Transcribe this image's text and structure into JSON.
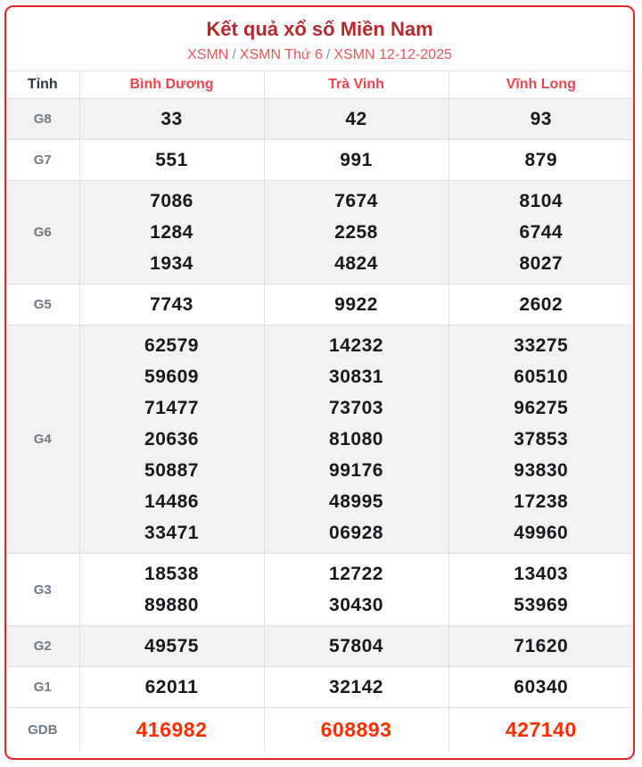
{
  "header": {
    "title": "Kết quả xổ số Miền Nam",
    "breadcrumb": [
      "XSMN",
      "XSMN Thứ 6",
      "XSMN 12-12-2025"
    ],
    "separator": "/"
  },
  "table": {
    "corner_label": "Tỉnh",
    "provinces": [
      "Bình Dương",
      "Trà Vinh",
      "Vĩnh Long"
    ],
    "rows": [
      {
        "prize": "G8",
        "shaded": true,
        "highlight": false,
        "values": [
          [
            "33"
          ],
          [
            "42"
          ],
          [
            "93"
          ]
        ]
      },
      {
        "prize": "G7",
        "shaded": false,
        "highlight": false,
        "values": [
          [
            "551"
          ],
          [
            "991"
          ],
          [
            "879"
          ]
        ]
      },
      {
        "prize": "G6",
        "shaded": true,
        "highlight": false,
        "values": [
          [
            "7086",
            "1284",
            "1934"
          ],
          [
            "7674",
            "2258",
            "4824"
          ],
          [
            "8104",
            "6744",
            "8027"
          ]
        ]
      },
      {
        "prize": "G5",
        "shaded": false,
        "highlight": false,
        "values": [
          [
            "7743"
          ],
          [
            "9922"
          ],
          [
            "2602"
          ]
        ]
      },
      {
        "prize": "G4",
        "shaded": true,
        "highlight": false,
        "values": [
          [
            "62579",
            "59609",
            "71477",
            "20636",
            "50887",
            "14486",
            "33471"
          ],
          [
            "14232",
            "30831",
            "73703",
            "81080",
            "99176",
            "48995",
            "06928"
          ],
          [
            "33275",
            "60510",
            "96275",
            "37853",
            "93830",
            "17238",
            "49960"
          ]
        ]
      },
      {
        "prize": "G3",
        "shaded": false,
        "highlight": false,
        "values": [
          [
            "18538",
            "89880"
          ],
          [
            "12722",
            "30430"
          ],
          [
            "13403",
            "53969"
          ]
        ]
      },
      {
        "prize": "G2",
        "shaded": true,
        "highlight": false,
        "values": [
          [
            "49575"
          ],
          [
            "57804"
          ],
          [
            "71620"
          ]
        ]
      },
      {
        "prize": "G1",
        "shaded": false,
        "highlight": false,
        "values": [
          [
            "62011"
          ],
          [
            "32142"
          ],
          [
            "60340"
          ]
        ]
      },
      {
        "prize": "GDB",
        "shaded": false,
        "highlight": true,
        "values": [
          [
            "416982"
          ],
          [
            "608893"
          ],
          [
            "427140"
          ]
        ]
      }
    ]
  },
  "colors": {
    "card_border": "#e8232a",
    "title": "#b32b30",
    "breadcrumb_link": "#e8555d",
    "breadcrumb_separator": "#6ba3cc",
    "province_header": "#e94450",
    "corner_header": "#2c3744",
    "prize_label": "#707a85",
    "number": "#17191d",
    "jackpot_number": "#ff2e00",
    "shaded_row_bg": "#f2f2f2",
    "cell_border": "#e0e0e0"
  }
}
